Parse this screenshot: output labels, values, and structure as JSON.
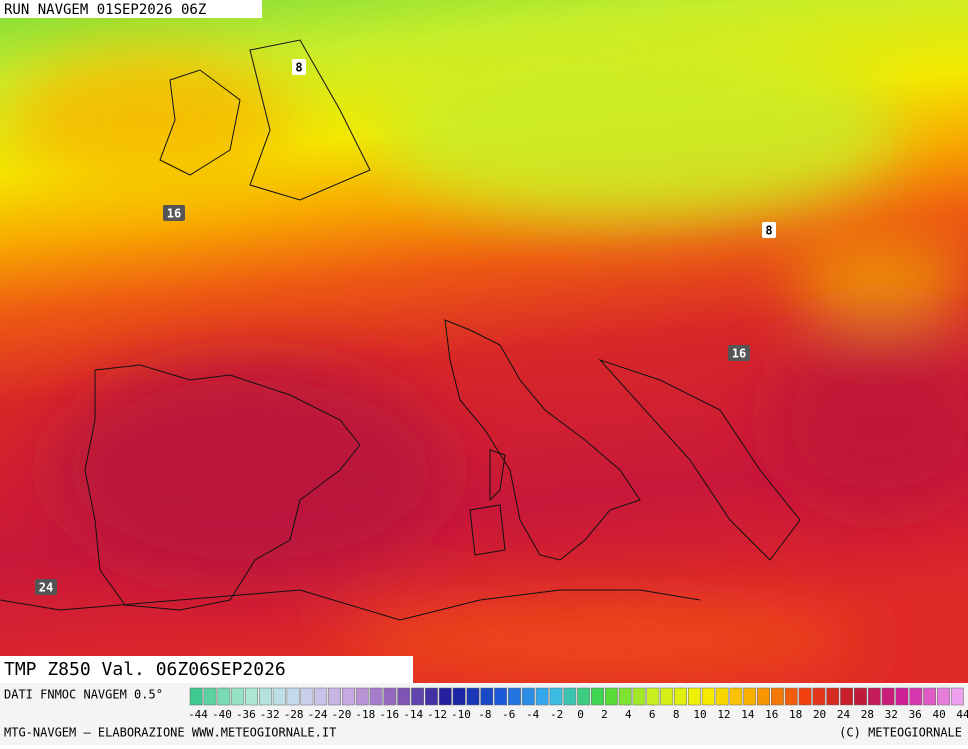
{
  "header": {
    "run": "RUN NAVGEM 01SEP2026 06Z"
  },
  "map": {
    "contour_labels": [
      "8",
      "16",
      "8",
      "16",
      "24"
    ]
  },
  "product": {
    "title": "TMP Z850 Val. 06Z06SEP2026"
  },
  "colorbar": {
    "source": "DATI FNMOC NAVGEM 0.5°",
    "labels": [
      "-44",
      "-40",
      "-36",
      "-32",
      "-28",
      "-24",
      "-20",
      "-18",
      "-16",
      "-14",
      "-12",
      "-10",
      "-8",
      "-6",
      "-4",
      "-2",
      "0",
      "2",
      "4",
      "6",
      "8",
      "10",
      "12",
      "14",
      "16",
      "18",
      "20",
      "24",
      "28",
      "32",
      "36",
      "40",
      "44"
    ],
    "stops": [
      "#3ec98f",
      "#a8e8d0",
      "#c8d8f0",
      "#c8a8e0",
      "#8a5ab8",
      "#1a1a9a",
      "#1a5ad8",
      "#3ab8f0",
      "#40d840",
      "#c8f020",
      "#f8f000",
      "#f8a800",
      "#f04010",
      "#c01830",
      "#d020a0",
      "#f0a0f0"
    ]
  },
  "footer": {
    "left": "MTG-NAVGEM — ELABORAZIONE WWW.METEOGIORNALE.IT",
    "right": "(C) METEOGIORNALE"
  }
}
